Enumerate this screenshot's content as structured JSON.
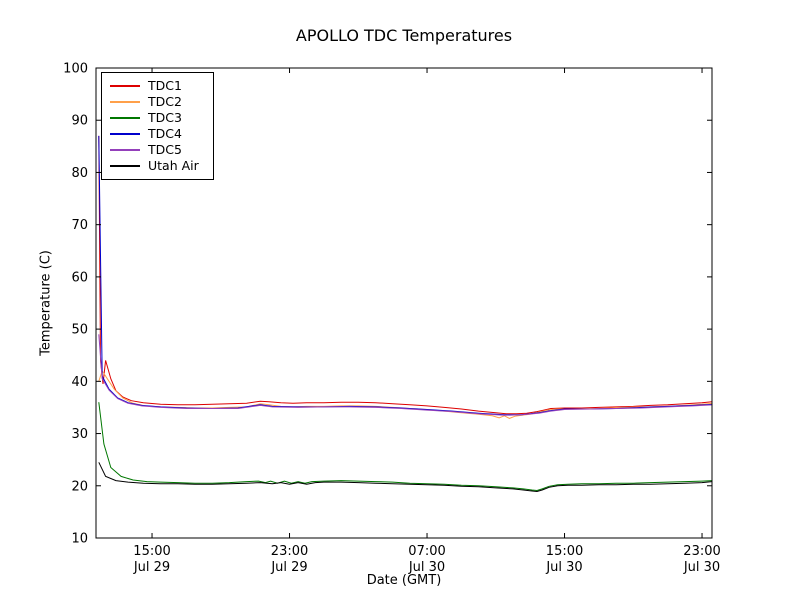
{
  "chart_data": {
    "type": "line",
    "title": "APOLLO TDC Temperatures",
    "xlabel": "Date (GMT)",
    "ylabel": "Temperature (C)",
    "xlim": [
      11.74,
      47.58
    ],
    "ylim": [
      10,
      100
    ],
    "x_units": "hours since Jul 29 00:00 GMT",
    "grid": false,
    "legend_position": "upper left",
    "yticks": [
      10,
      20,
      30,
      40,
      50,
      60,
      70,
      80,
      90,
      100
    ],
    "xticks": [
      {
        "x": 15,
        "line1": "15:00",
        "line2": "Jul 29"
      },
      {
        "x": 23,
        "line1": "23:00",
        "line2": "Jul 29"
      },
      {
        "x": 31,
        "line1": "07:00",
        "line2": "Jul 30"
      },
      {
        "x": 39,
        "line1": "15:00",
        "line2": "Jul 30"
      },
      {
        "x": 47,
        "line1": "23:00",
        "line2": "Jul 30"
      }
    ],
    "series": [
      {
        "name": "TDC1",
        "color": "#dd0000",
        "points": [
          [
            11.9,
            87
          ],
          [
            12.0,
            44
          ],
          [
            12.15,
            39.5
          ],
          [
            12.3,
            44
          ],
          [
            12.6,
            40.5
          ],
          [
            12.9,
            38.2
          ],
          [
            13.3,
            37.0
          ],
          [
            13.8,
            36.3
          ],
          [
            14.5,
            35.9
          ],
          [
            15.5,
            35.6
          ],
          [
            16.5,
            35.5
          ],
          [
            17.5,
            35.5
          ],
          [
            18.5,
            35.6
          ],
          [
            19.5,
            35.7
          ],
          [
            20.5,
            35.8
          ],
          [
            21.3,
            36.2
          ],
          [
            21.8,
            36.1
          ],
          [
            22.5,
            35.9
          ],
          [
            23.2,
            35.8
          ],
          [
            24,
            35.9
          ],
          [
            25,
            35.9
          ],
          [
            26,
            36.0
          ],
          [
            27,
            36.0
          ],
          [
            28,
            35.9
          ],
          [
            29,
            35.7
          ],
          [
            30,
            35.5
          ],
          [
            31,
            35.3
          ],
          [
            32,
            35.0
          ],
          [
            33,
            34.7
          ],
          [
            34,
            34.3
          ],
          [
            35,
            34.0
          ],
          [
            35.6,
            33.8
          ],
          [
            36.2,
            33.8
          ],
          [
            36.8,
            33.9
          ],
          [
            37.4,
            34.2
          ],
          [
            37.8,
            34.5
          ],
          [
            38.2,
            34.8
          ],
          [
            39,
            34.9
          ],
          [
            40,
            34.9
          ],
          [
            41,
            35.0
          ],
          [
            42,
            35.1
          ],
          [
            43,
            35.2
          ],
          [
            44,
            35.4
          ],
          [
            45,
            35.5
          ],
          [
            46,
            35.7
          ],
          [
            47,
            35.9
          ],
          [
            47.6,
            36.1
          ]
        ]
      },
      {
        "name": "TDC2",
        "color": "#ffa04a",
        "points": [
          [
            11.9,
            40
          ],
          [
            12.1,
            42
          ],
          [
            12.4,
            40.5
          ],
          [
            12.8,
            38.5
          ],
          [
            13.3,
            36.8
          ],
          [
            13.9,
            35.8
          ],
          [
            14.6,
            35.3
          ],
          [
            15.5,
            35.1
          ],
          [
            16.5,
            35.0
          ],
          [
            17.5,
            34.9
          ],
          [
            18.5,
            34.9
          ],
          [
            19.5,
            35.0
          ],
          [
            20.5,
            35.1
          ],
          [
            21.3,
            35.7
          ],
          [
            21.8,
            35.5
          ],
          [
            22.5,
            35.2
          ],
          [
            23.2,
            35.1
          ],
          [
            24,
            35.2
          ],
          [
            25,
            35.2
          ],
          [
            26,
            35.3
          ],
          [
            27,
            35.3
          ],
          [
            28,
            35.2
          ],
          [
            29,
            35.0
          ],
          [
            30,
            34.8
          ],
          [
            31,
            34.6
          ],
          [
            32,
            34.3
          ],
          [
            33,
            34.0
          ],
          [
            34,
            33.7
          ],
          [
            34.8,
            33.4
          ],
          [
            35.2,
            33.0
          ],
          [
            35.5,
            33.4
          ],
          [
            35.8,
            32.9
          ],
          [
            36.1,
            33.3
          ],
          [
            36.5,
            33.5
          ],
          [
            37,
            33.7
          ],
          [
            37.5,
            34.1
          ],
          [
            38,
            34.5
          ],
          [
            38.5,
            34.7
          ],
          [
            39.5,
            34.7
          ],
          [
            41,
            34.8
          ],
          [
            42.5,
            35.0
          ],
          [
            44,
            35.1
          ],
          [
            45.5,
            35.3
          ],
          [
            47,
            35.6
          ],
          [
            47.6,
            35.8
          ]
        ]
      },
      {
        "name": "TDC3",
        "color": "#007700",
        "points": [
          [
            11.9,
            36
          ],
          [
            12.2,
            28
          ],
          [
            12.6,
            23.5
          ],
          [
            13.2,
            21.8
          ],
          [
            13.9,
            21.1
          ],
          [
            14.7,
            20.8
          ],
          [
            15.5,
            20.7
          ],
          [
            16.5,
            20.6
          ],
          [
            17.5,
            20.5
          ],
          [
            18.5,
            20.5
          ],
          [
            19.5,
            20.6
          ],
          [
            20.5,
            20.8
          ],
          [
            21.2,
            20.9
          ],
          [
            21.6,
            20.6
          ],
          [
            21.9,
            20.9
          ],
          [
            22.3,
            20.5
          ],
          [
            22.7,
            20.9
          ],
          [
            23.1,
            20.5
          ],
          [
            23.5,
            20.8
          ],
          [
            23.9,
            20.5
          ],
          [
            24.3,
            20.8
          ],
          [
            25,
            20.9
          ],
          [
            26,
            21.0
          ],
          [
            27,
            20.9
          ],
          [
            28,
            20.8
          ],
          [
            29,
            20.7
          ],
          [
            30,
            20.5
          ],
          [
            31,
            20.4
          ],
          [
            32,
            20.3
          ],
          [
            33,
            20.1
          ],
          [
            34,
            20.0
          ],
          [
            35,
            19.8
          ],
          [
            36,
            19.6
          ],
          [
            36.6,
            19.4
          ],
          [
            37.1,
            19.2
          ],
          [
            37.4,
            19.1
          ],
          [
            37.7,
            19.4
          ],
          [
            38.1,
            19.9
          ],
          [
            38.6,
            20.2
          ],
          [
            39.2,
            20.3
          ],
          [
            40,
            20.4
          ],
          [
            41,
            20.4
          ],
          [
            42,
            20.5
          ],
          [
            43,
            20.5
          ],
          [
            44,
            20.6
          ],
          [
            45,
            20.7
          ],
          [
            46,
            20.8
          ],
          [
            47,
            20.9
          ],
          [
            47.6,
            21.0
          ]
        ]
      },
      {
        "name": "TDC4",
        "color": "#0000cc",
        "points": [
          [
            11.9,
            87
          ],
          [
            12.1,
            41
          ],
          [
            12.5,
            38.5
          ],
          [
            13,
            36.8
          ],
          [
            13.6,
            35.9
          ],
          [
            14.4,
            35.4
          ],
          [
            15.5,
            35.1
          ],
          [
            17,
            34.9
          ],
          [
            18.5,
            34.8
          ],
          [
            20,
            34.9
          ],
          [
            21.3,
            35.5
          ],
          [
            22,
            35.2
          ],
          [
            23.5,
            35.1
          ],
          [
            25,
            35.1
          ],
          [
            26.5,
            35.2
          ],
          [
            28,
            35.1
          ],
          [
            29.5,
            34.9
          ],
          [
            31,
            34.6
          ],
          [
            32.5,
            34.3
          ],
          [
            34,
            33.9
          ],
          [
            35.5,
            33.6
          ],
          [
            36.5,
            33.6
          ],
          [
            37.5,
            34.0
          ],
          [
            38.2,
            34.4
          ],
          [
            39,
            34.7
          ],
          [
            40.5,
            34.7
          ],
          [
            42,
            34.8
          ],
          [
            43.5,
            35.0
          ],
          [
            45,
            35.2
          ],
          [
            46.5,
            35.4
          ],
          [
            47.6,
            35.6
          ]
        ]
      },
      {
        "name": "TDC5",
        "color": "#9440bb",
        "points": [
          [
            11.9,
            49
          ],
          [
            12.1,
            40.5
          ],
          [
            12.5,
            38.3
          ],
          [
            13,
            36.7
          ],
          [
            13.6,
            35.8
          ],
          [
            14.4,
            35.3
          ],
          [
            15.5,
            35.0
          ],
          [
            17,
            34.8
          ],
          [
            18.5,
            34.8
          ],
          [
            20,
            34.8
          ],
          [
            21.3,
            35.4
          ],
          [
            22,
            35.1
          ],
          [
            23.5,
            35.0
          ],
          [
            25,
            35.1
          ],
          [
            26.5,
            35.1
          ],
          [
            28,
            35.0
          ],
          [
            29.5,
            34.8
          ],
          [
            31,
            34.5
          ],
          [
            32.5,
            34.2
          ],
          [
            34,
            33.8
          ],
          [
            35.5,
            33.5
          ],
          [
            36.5,
            33.6
          ],
          [
            37.5,
            33.9
          ],
          [
            38.2,
            34.3
          ],
          [
            39,
            34.6
          ],
          [
            40.5,
            34.7
          ],
          [
            42,
            34.8
          ],
          [
            43.5,
            34.9
          ],
          [
            45,
            35.1
          ],
          [
            46.5,
            35.3
          ],
          [
            47.6,
            35.5
          ]
        ]
      },
      {
        "name": "Utah Air",
        "color": "#000000",
        "points": [
          [
            11.9,
            24.5
          ],
          [
            12.3,
            21.8
          ],
          [
            12.9,
            21.0
          ],
          [
            13.6,
            20.7
          ],
          [
            14.5,
            20.5
          ],
          [
            15.5,
            20.4
          ],
          [
            16.5,
            20.4
          ],
          [
            17.5,
            20.3
          ],
          [
            18.5,
            20.3
          ],
          [
            19.5,
            20.4
          ],
          [
            20.5,
            20.5
          ],
          [
            21.3,
            20.6
          ],
          [
            22,
            20.4
          ],
          [
            22.5,
            20.6
          ],
          [
            23,
            20.3
          ],
          [
            23.5,
            20.6
          ],
          [
            24,
            20.3
          ],
          [
            24.5,
            20.6
          ],
          [
            25,
            20.7
          ],
          [
            26,
            20.7
          ],
          [
            27,
            20.6
          ],
          [
            28,
            20.5
          ],
          [
            29,
            20.4
          ],
          [
            30,
            20.3
          ],
          [
            31,
            20.2
          ],
          [
            32,
            20.1
          ],
          [
            33,
            19.9
          ],
          [
            34,
            19.8
          ],
          [
            35,
            19.6
          ],
          [
            36,
            19.4
          ],
          [
            36.6,
            19.2
          ],
          [
            37.1,
            19.0
          ],
          [
            37.4,
            18.9
          ],
          [
            37.7,
            19.2
          ],
          [
            38.1,
            19.7
          ],
          [
            38.6,
            20.0
          ],
          [
            39.2,
            20.1
          ],
          [
            40,
            20.1
          ],
          [
            41,
            20.2
          ],
          [
            42,
            20.2
          ],
          [
            43,
            20.3
          ],
          [
            44,
            20.3
          ],
          [
            45,
            20.4
          ],
          [
            46,
            20.5
          ],
          [
            47,
            20.6
          ],
          [
            47.6,
            20.8
          ]
        ]
      }
    ]
  }
}
